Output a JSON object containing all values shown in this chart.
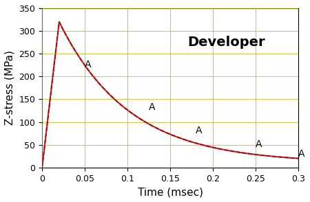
{
  "title": "Developer",
  "xlabel": "Time (msec)",
  "ylabel": "Z-stress (MPa)",
  "xlim": [
    0,
    0.3
  ],
  "ylim": [
    0,
    350
  ],
  "xticks": [
    0,
    0.05,
    0.1,
    0.15,
    0.2,
    0.25,
    0.3
  ],
  "yticks": [
    0,
    50,
    100,
    150,
    200,
    250,
    300,
    350
  ],
  "curve_color_red": "#cc0000",
  "curve_color_black": "#000000",
  "marker_label": "A",
  "marker_positions": [
    [
      0.05,
      215
    ],
    [
      0.125,
      122
    ],
    [
      0.18,
      70
    ],
    [
      0.25,
      40
    ],
    [
      0.3,
      20
    ]
  ],
  "grid_color": "#b5b500",
  "background_color": "#ffffff",
  "title_fontsize": 14,
  "axis_label_fontsize": 11
}
